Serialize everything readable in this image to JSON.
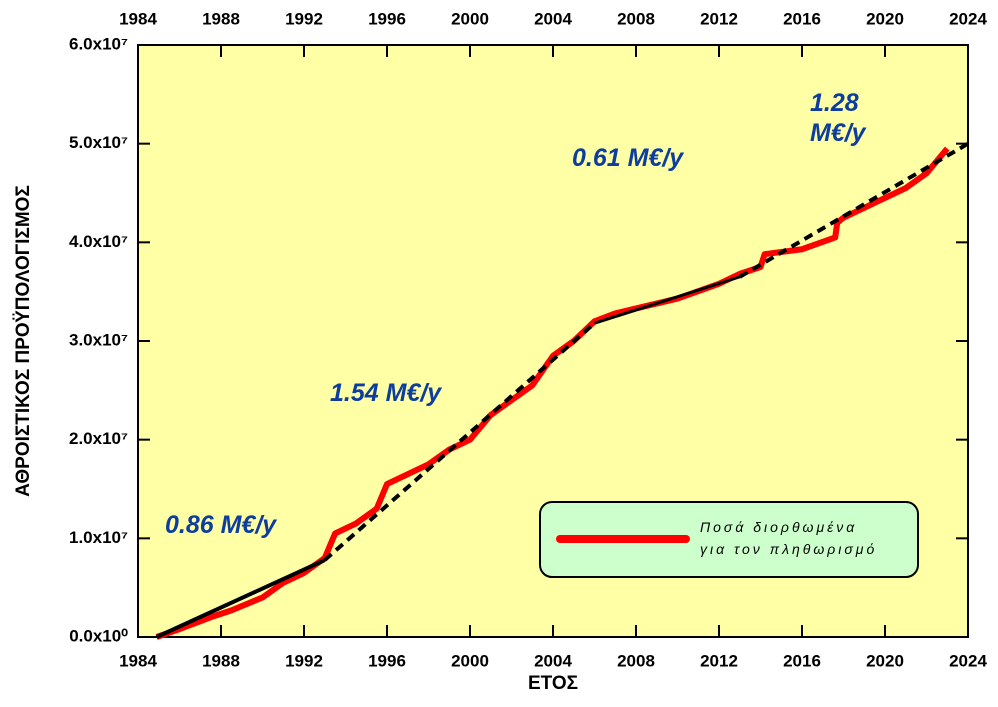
{
  "chart_data": {
    "type": "line",
    "xlabel": "ΕΤΟΣ",
    "ylabel": "ΑΘΡΟΙΣΤΙΚΟΣ ΠΡΟΫΠΟΛΟΓΙΣΜΟΣ",
    "annotations": [
      "0.86 M€/y",
      "1.54 M€/y",
      "0.61 M€/y",
      "1.28\nM€/y"
    ],
    "xlim": [
      1984,
      2024
    ],
    "xticks": [
      1984,
      1988,
      1992,
      1996,
      2000,
      2004,
      2008,
      2012,
      2016,
      2020,
      2024
    ],
    "ylim": [
      0,
      60000000
    ],
    "yticks": [
      {
        "value": 0,
        "label": "0.0x10⁰"
      },
      {
        "value": 10000000,
        "label": "1.0x10⁷"
      },
      {
        "value": 20000000,
        "label": "2.0x10⁷"
      },
      {
        "value": 30000000,
        "label": "3.0x10⁷"
      },
      {
        "value": 40000000,
        "label": "4.0x10⁷"
      },
      {
        "value": 50000000,
        "label": "5.0x10⁷"
      },
      {
        "value": 60000000,
        "label": "6.0x10⁷"
      }
    ],
    "background": "#ffffa6",
    "legend": "lower right",
    "series": [
      {
        "name": "Ποσά διορθωμένα\nγια τον πληθωρισμό",
        "color": "#ff0000",
        "width": 6,
        "dash": false,
        "x": [
          1984.9,
          1986,
          1987.5,
          1988.5,
          1990,
          1991,
          1992,
          1993,
          1993.5,
          1994.5,
          1995.5,
          1996,
          1997,
          1998,
          1999,
          2000,
          2001,
          2002,
          2003,
          2004,
          2005,
          2006,
          2007,
          2008,
          2010,
          2012,
          2013,
          2014,
          2014.2,
          2016,
          2017.6,
          2017.7,
          2018,
          2019,
          2020,
          2021,
          2022,
          2023
        ],
        "values": [
          0,
          800000,
          2000000,
          2700000,
          4000000,
          5500000,
          6500000,
          8000000,
          10500000,
          11500000,
          13000000,
          15500000,
          16500000,
          17500000,
          19000000,
          20000000,
          22500000,
          24000000,
          25500000,
          28500000,
          30000000,
          32000000,
          32800000,
          33300000,
          34300000,
          35800000,
          36800000,
          37500000,
          38800000,
          39300000,
          40500000,
          42000000,
          42500000,
          43500000,
          44500000,
          45500000,
          47000000,
          49500000
        ]
      },
      {
        "color": "#000000",
        "width": 4,
        "dash": false,
        "x": [
          1984.9,
          1993
        ],
        "values": [
          0,
          7800000
        ]
      },
      {
        "color": "#000000",
        "width": 4,
        "dash": true,
        "x": [
          1993,
          2006
        ],
        "values": [
          7800000,
          31800000
        ]
      },
      {
        "color": "#000000",
        "width": 3,
        "dash": false,
        "x": [
          2006,
          2013
        ],
        "values": [
          31800000,
          36500000
        ]
      },
      {
        "color": "#000000",
        "width": 4,
        "dash": true,
        "x": [
          2013,
          2024
        ],
        "values": [
          36500000,
          50000000
        ]
      }
    ]
  }
}
